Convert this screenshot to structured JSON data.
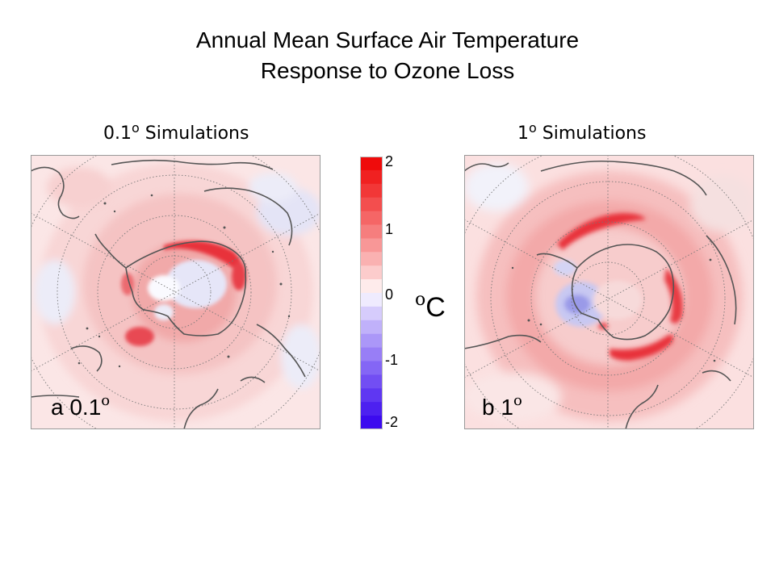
{
  "title": {
    "line1": "Annual Mean Surface Air Temperature",
    "line2": "Response to Ozone Loss"
  },
  "panels": [
    {
      "id": "a",
      "heading": "0.1",
      "heading_suffix": " Simulations",
      "degree_mark": "o",
      "label": "a  0.1",
      "label_degree": "o"
    },
    {
      "id": "b",
      "heading": "1",
      "heading_suffix": " Simulations",
      "degree_mark": "o",
      "label": "b  1",
      "label_degree": "o"
    }
  ],
  "colorbar": {
    "ticks": [
      "2",
      "1",
      "0",
      "-1",
      "-2"
    ],
    "unit_degree": "o",
    "unit": "C",
    "range": [
      -2,
      2
    ],
    "levels": 20,
    "colors": {
      "max_positive": "#ee0000",
      "neutral": "#ffffff",
      "max_negative": "#3300ee"
    }
  },
  "map_data": {
    "projection": "south-polar-stereographic",
    "coastline_color": "#555555",
    "gridline_color": "#777777"
  }
}
